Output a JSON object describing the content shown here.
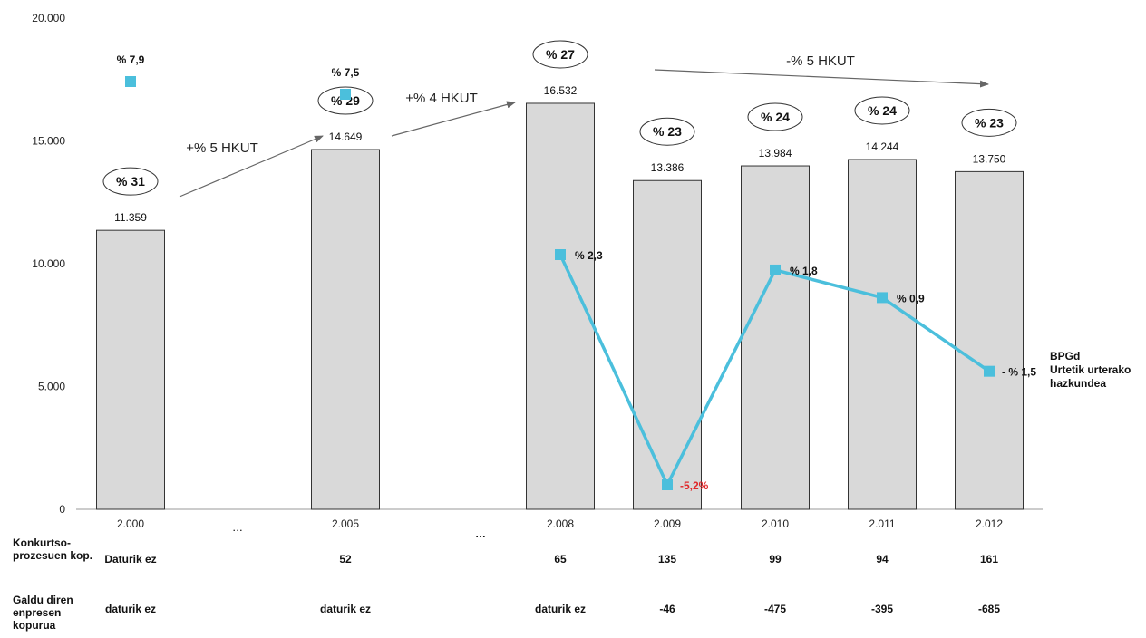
{
  "chart_data": {
    "type": "bar",
    "categories": [
      "2.000",
      "…",
      "2.005",
      "…",
      "2.008",
      "2.009",
      "2.010",
      "2.011",
      "2.012"
    ],
    "yticks": [
      "0",
      "5.000",
      "10.000",
      "15.000",
      "20.000"
    ],
    "ylim": [
      0,
      20000
    ],
    "grid": false,
    "bars": [
      {
        "category": "2.000",
        "value": 11359,
        "label": "11.359",
        "share": "% 31"
      },
      {
        "category": "2.005",
        "value": 14649,
        "label": "14.649",
        "share": "% 29"
      },
      {
        "category": "2.008",
        "value": 16532,
        "label": "16.532",
        "share": "% 27"
      },
      {
        "category": "2.009",
        "value": 13386,
        "label": "13.386",
        "share": "% 23"
      },
      {
        "category": "2.010",
        "value": 13984,
        "label": "13.984",
        "share": "% 24"
      },
      {
        "category": "2.011",
        "value": 14244,
        "label": "14.244",
        "share": "% 24"
      },
      {
        "category": "2.012",
        "value": 13750,
        "label": "13.750",
        "share": "% 23"
      }
    ],
    "growth_series": {
      "name": "BPGd Urtetik urterako hazkundea",
      "color": "#4bbfdc",
      "points": [
        {
          "category": "2.000",
          "growth": 7.9,
          "label": "% 7,9",
          "connected": false
        },
        {
          "category": "2.005",
          "growth": 7.5,
          "label": "% 7,5",
          "connected": false
        },
        {
          "category": "2.008",
          "growth": 2.3,
          "label": "% 2,3",
          "connected": true
        },
        {
          "category": "2.009",
          "growth": -5.2,
          "label": "-5,2%",
          "connected": true
        },
        {
          "category": "2.010",
          "growth": 1.8,
          "label": "% 1,8",
          "connected": true
        },
        {
          "category": "2.011",
          "growth": 0.9,
          "label": "% 0,9",
          "connected": true
        },
        {
          "category": "2.012",
          "growth": -1.5,
          "label": "- % 1,5",
          "connected": true
        }
      ]
    },
    "annotations": [
      {
        "text": "+% 5 HKUT",
        "from": "2.000",
        "to": "2.005"
      },
      {
        "text": "+% 4 HKUT",
        "from": "2.005",
        "to": "2.008"
      },
      {
        "text": "-% 5 HKUT",
        "from": "2.008",
        "to": "2.012"
      }
    ],
    "legend": {
      "line1": "BPGd",
      "line2": "Urtetik urterako",
      "line3": "hazkundea",
      "placement": "right"
    }
  },
  "table": {
    "row1_label": "Konkurtso-prozesuen kop.",
    "row2_label": "Galdu diren enpresen kopurua",
    "row1": [
      "Daturik ez",
      "52",
      "65",
      "135",
      "99",
      "94",
      "161"
    ],
    "row2": [
      "daturik ez",
      "daturik ez",
      "daturik ez",
      "-46",
      "-475",
      "-395",
      "-685"
    ],
    "extra_ellipsis": "…"
  },
  "colors": {
    "bar_fill": "#d9d9d9",
    "bar_stroke": "#333333",
    "line": "#4bbfdc",
    "negative": "#e0282a",
    "arrow": "#666666"
  }
}
